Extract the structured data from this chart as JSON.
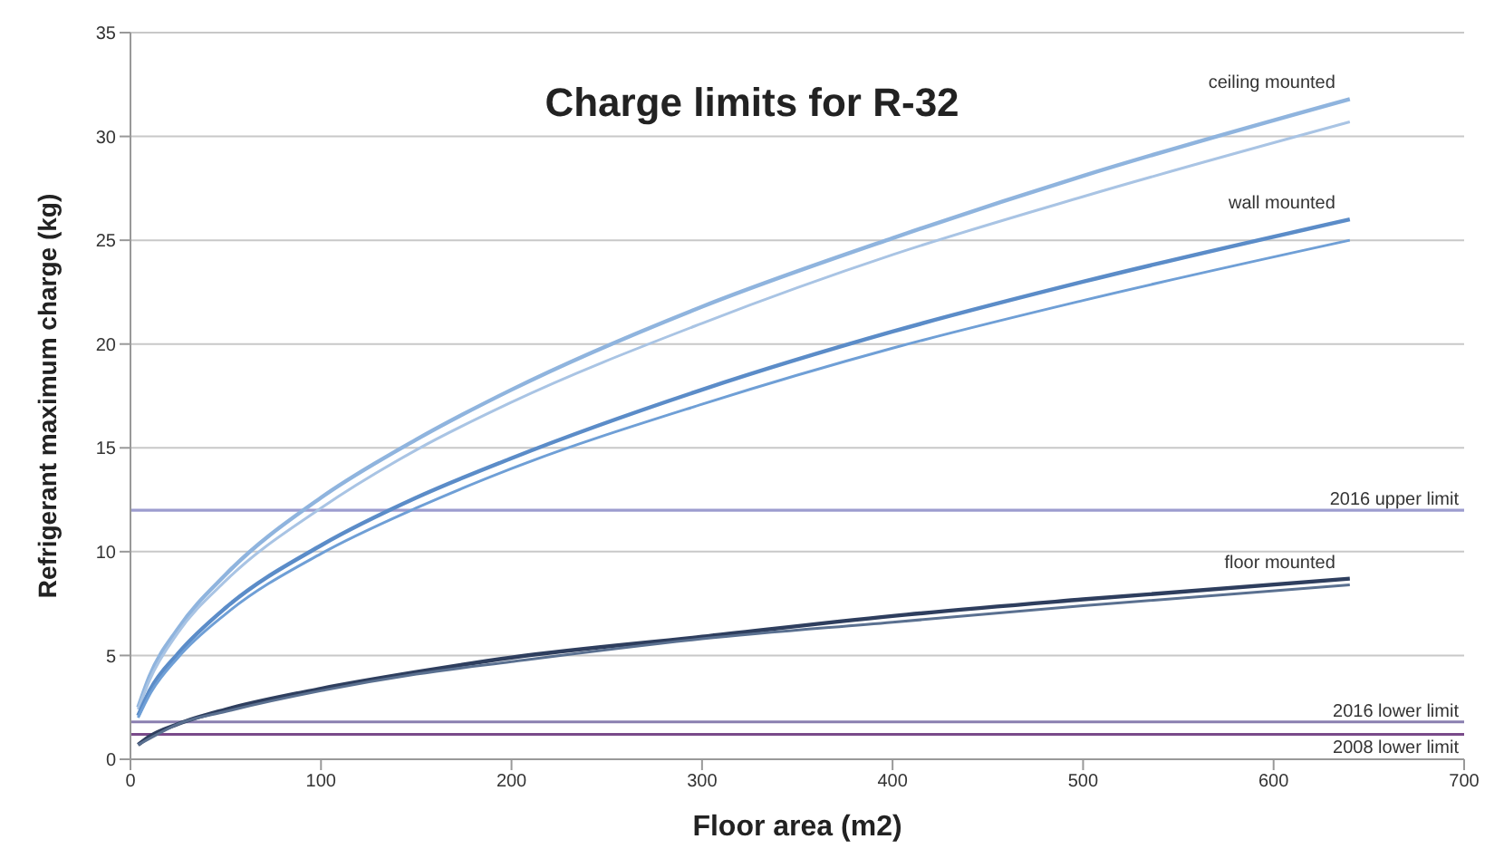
{
  "chart_data": {
    "type": "line",
    "title": "Charge limits for R-32",
    "xlabel": "Floor area (m2)",
    "ylabel": "Refrigerant maximum charge (kg)",
    "xlim": [
      0,
      700
    ],
    "xticks": [
      0,
      100,
      200,
      300,
      400,
      500,
      600,
      700
    ],
    "ylim": [
      0,
      35
    ],
    "yticks": [
      0,
      5,
      10,
      15,
      20,
      25,
      30,
      35
    ],
    "grid": "y",
    "legend": false,
    "marker": "none",
    "line_style": "solid",
    "x": [
      4,
      10,
      25,
      50,
      100,
      150,
      200,
      300,
      400,
      500,
      640
    ],
    "series": [
      {
        "name": "ceiling mounted",
        "color": "#8fb4de",
        "values": [
          2.5,
          4.0,
          6.3,
          8.9,
          12.6,
          15.4,
          17.8,
          21.8,
          25.1,
          28.1,
          31.8
        ]
      },
      {
        "color": "#a9c4e4",
        "values": [
          2.4,
          3.8,
          6.1,
          8.6,
          12.1,
          14.9,
          17.2,
          21.0,
          24.3,
          27.1,
          30.7
        ]
      },
      {
        "name": "wall mounted",
        "color": "#5b8cc8",
        "values": [
          2.1,
          3.3,
          5.1,
          7.3,
          10.3,
          12.6,
          14.5,
          17.8,
          20.6,
          23.0,
          26.0
        ]
      },
      {
        "color": "#6f9fd6",
        "values": [
          2.0,
          3.1,
          4.9,
          7.0,
          9.9,
          12.1,
          14.0,
          17.1,
          19.8,
          22.1,
          25.0
        ]
      },
      {
        "name": "floor mounted",
        "color": "#2e3e5e",
        "values": [
          0.7,
          1.1,
          1.7,
          2.4,
          3.4,
          4.2,
          4.9,
          5.9,
          6.9,
          7.7,
          8.7
        ]
      },
      {
        "color": "#5a7090",
        "values": [
          0.7,
          1.0,
          1.7,
          2.3,
          3.3,
          4.1,
          4.7,
          5.8,
          6.6,
          7.4,
          8.4
        ]
      }
    ],
    "ref_lines": [
      {
        "axis": "y",
        "value": 12,
        "label": "2016 upper limit",
        "color": "#9c9ccf"
      },
      {
        "axis": "y",
        "value": 1.8,
        "label": "2016 lower limit",
        "color": "#8a7fb0"
      },
      {
        "axis": "y",
        "value": 1.2,
        "label": "2008 lower limit",
        "color": "#7a4a8a"
      }
    ]
  }
}
